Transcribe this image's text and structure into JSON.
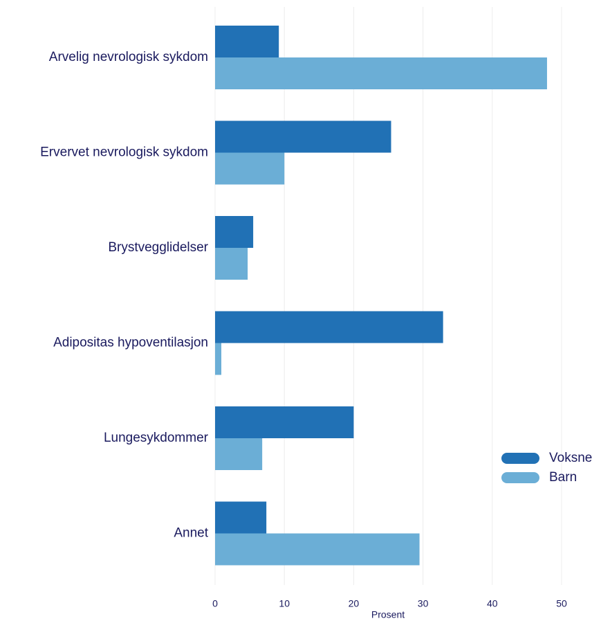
{
  "chart_data": {
    "type": "hbar",
    "xlabel": "Prosent",
    "categories": [
      "Arvelig nevrologisk sykdom",
      "Ervervet nevrologisk sykdom",
      "Brystvegglidelser",
      "Adipositas hypoventilasjon",
      "Lungesykdommer",
      "Annet"
    ],
    "series": [
      {
        "name": "Voksne",
        "color": "#2171b5",
        "values": [
          9.2,
          25.4,
          5.5,
          32.9,
          20.0,
          7.4
        ]
      },
      {
        "name": "Barn",
        "color": "#6baed6",
        "values": [
          47.9,
          10.0,
          4.7,
          0.9,
          6.8,
          29.5
        ]
      }
    ],
    "xlim": [
      0,
      50
    ],
    "xticks": [
      0,
      10,
      20,
      30,
      40,
      50
    ],
    "grid": true,
    "legend": "lower right"
  }
}
